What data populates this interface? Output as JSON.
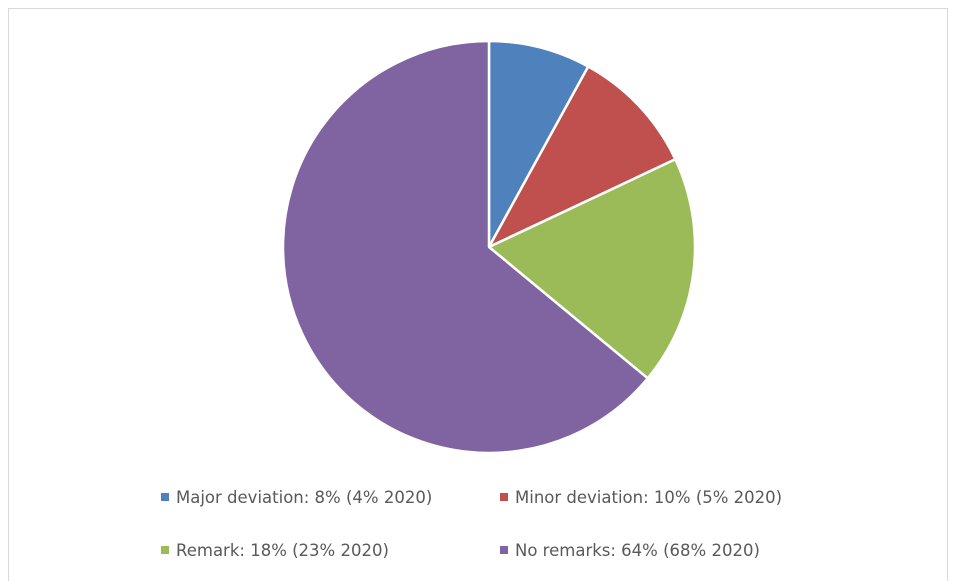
{
  "chart_data": {
    "type": "pie",
    "title": "",
    "start_angle_deg": 0,
    "direction": "clockwise",
    "legend_position": "bottom",
    "slices": [
      {
        "label": "Major deviation: 8% (4% 2020)",
        "value": 8,
        "color": "#4f81bd"
      },
      {
        "label": "Minor deviation: 10% (5% 2020)",
        "value": 10,
        "color": "#c0504d"
      },
      {
        "label": "Remark: 18% (23% 2020)",
        "value": 18,
        "color": "#9bbb59"
      },
      {
        "label": "No remarks: 64% (68% 2020)",
        "value": 64,
        "color": "#8064a2"
      }
    ]
  }
}
